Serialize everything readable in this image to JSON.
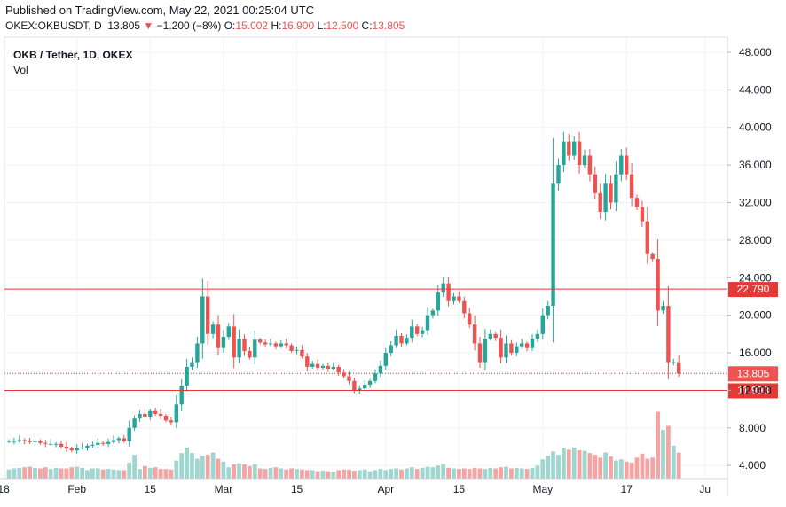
{
  "header": {
    "published": "Published on TradingView.com, May 22, 2021 00:25:04 UTC",
    "symbol": "OKEX:OKBUSDT, D",
    "last": "13.805",
    "change": "−1.200 (−8%)",
    "o_label": "O:",
    "o": "15.002",
    "h_label": "H:",
    "h": "16.900",
    "l_label": "L:",
    "l": "12.500",
    "c_label": "C:",
    "c": "13.805",
    "down_arrow": "▼"
  },
  "legend": {
    "title": "OKB / Tether, 1D, OKEX",
    "vol": "Vol"
  },
  "colors": {
    "up": "#26a69a",
    "down": "#ef5350",
    "up_vol": "#9fd6cf",
    "down_vol": "#f4a5a3",
    "grid": "#f0f3fa",
    "line": "#e53935"
  },
  "chart_data": {
    "type": "candlestick",
    "y_ticks": [
      "48.000",
      "44.000",
      "40.000",
      "36.000",
      "32.000",
      "28.000",
      "24.000",
      "20.000",
      "16.000",
      "12.000",
      "8.000",
      "4.000"
    ],
    "y_range": [
      2.6,
      49.6
    ],
    "x_ticks": [
      {
        "label": "18",
        "day": -1
      },
      {
        "label": "Feb",
        "day": 13
      },
      {
        "label": "15",
        "day": 27
      },
      {
        "label": "Mar",
        "day": 41
      },
      {
        "label": "15",
        "day": 55
      },
      {
        "label": "Apr",
        "day": 72
      },
      {
        "label": "15",
        "day": 86
      },
      {
        "label": "May",
        "day": 102
      },
      {
        "label": "17",
        "day": 118
      },
      {
        "label": "Ju",
        "day": 133
      }
    ],
    "horizontal_lines": [
      {
        "value": 22.79,
        "label": "22.790"
      },
      {
        "value": 11.993,
        "label": "11.993"
      }
    ],
    "last_price": {
      "value": 13.805,
      "label": "13.805"
    },
    "closes": [
      6.6,
      6.6,
      6.7,
      6.6,
      6.5,
      6.6,
      6.4,
      6.3,
      6.3,
      6.3,
      6.0,
      5.8,
      5.6,
      5.9,
      5.9,
      6.1,
      6.2,
      6.4,
      6.3,
      6.5,
      6.7,
      6.9,
      6.6,
      8.0,
      9.0,
      9.5,
      9.2,
      9.8,
      9.5,
      9.3,
      8.8,
      8.6,
      10.5,
      12.5,
      14.5,
      15.0,
      17.0,
      22.0,
      18.0,
      19.0,
      16.5,
      17.7,
      18.8,
      15.5,
      17.5,
      16.2,
      15.5,
      17.4,
      17.1,
      16.9,
      17.0,
      16.7,
      17.0,
      16.8,
      16.2,
      16.3,
      15.6,
      14.5,
      14.8,
      14.4,
      14.6,
      14.3,
      14.5,
      13.9,
      13.5,
      13.0,
      12.0,
      12.2,
      12.6,
      13.0,
      13.8,
      14.6,
      16.0,
      16.8,
      17.8,
      17.0,
      17.6,
      18.8,
      18.0,
      18.4,
      20.0,
      20.5,
      22.4,
      23.4,
      21.5,
      22.0,
      21.5,
      20.2,
      19.0,
      17.0,
      15.0,
      17.5,
      18.0,
      17.6,
      15.5,
      17.0,
      16.0,
      16.7,
      17.0,
      16.5,
      17.5,
      18.0,
      20.0,
      21.0,
      34.0,
      36.0,
      38.5,
      37.0,
      38.5,
      36.0,
      37.0,
      35.0,
      33.0,
      31.0,
      34.0,
      32.0,
      35.0,
      37.0,
      35.0,
      32.5,
      31.5,
      30.0,
      26.5,
      26.0,
      20.5,
      21.0,
      15.0,
      15.0,
      13.805
    ],
    "volumes": [
      1.6,
      1.8,
      1.9,
      2.0,
      2.1,
      1.9,
      1.8,
      2.0,
      1.7,
      1.9,
      1.8,
      1.8,
      2.0,
      2.1,
      1.9,
      1.5,
      1.8,
      1.8,
      1.6,
      1.7,
      1.6,
      1.5,
      1.5,
      2.8,
      4.2,
      1.7,
      2.2,
      1.9,
      2.0,
      1.7,
      1.7,
      1.6,
      3.2,
      4.5,
      5.5,
      4.5,
      3.5,
      4.0,
      4.2,
      4.6,
      3.5,
      3.0,
      2.0,
      2.5,
      2.7,
      2.5,
      2.2,
      2.5,
      1.8,
      1.7,
      1.9,
      2.0,
      1.8,
      1.6,
      1.8,
      1.7,
      1.6,
      1.5,
      1.5,
      1.3,
      1.4,
      1.3,
      1.2,
      1.5,
      1.6,
      1.6,
      1.4,
      1.5,
      1.6,
      1.3,
      1.5,
      1.7,
      1.5,
      1.7,
      1.8,
      1.6,
      1.8,
      2.0,
      1.7,
      1.9,
      2.1,
      2.0,
      2.3,
      2.6,
      1.9,
      1.8,
      1.7,
      1.8,
      1.7,
      1.9,
      1.8,
      1.7,
      1.9,
      1.8,
      2.0,
      2.1,
      1.8,
      1.9,
      1.8,
      1.7,
      1.9,
      2.3,
      3.4,
      4.0,
      4.8,
      4.2,
      5.4,
      5.1,
      5.5,
      5.0,
      4.9,
      4.5,
      4.2,
      3.7,
      4.6,
      3.9,
      3.2,
      3.4,
      3.0,
      2.8,
      3.7,
      4.4,
      3.5,
      3.7,
      11.8,
      8.6,
      9.3,
      5.8,
      4.6
    ]
  }
}
